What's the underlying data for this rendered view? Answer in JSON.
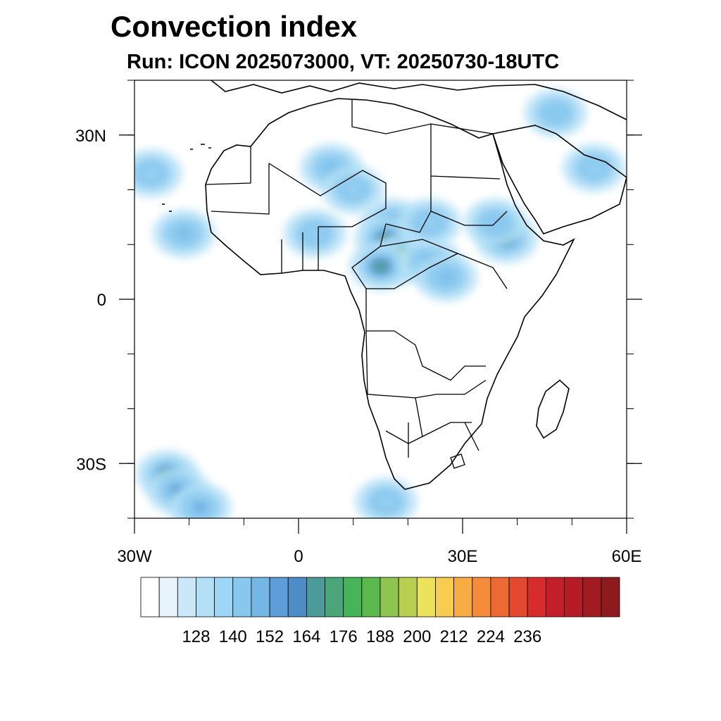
{
  "title": "Convection index",
  "subtitle": "Run: ICON 2025073000,  VT: 20250730-18UTC",
  "map": {
    "projection": "cylindrical equidistant",
    "lon_range": [
      -30,
      60
    ],
    "lat_range": [
      -40,
      40
    ],
    "x_ticks": [
      {
        "value": -30,
        "label": "30W"
      },
      {
        "value": 0,
        "label": "0"
      },
      {
        "value": 30,
        "label": "30E"
      },
      {
        "value": 60,
        "label": "60E"
      }
    ],
    "y_ticks": [
      {
        "value": 30,
        "label": "30N"
      },
      {
        "value": 0,
        "label": "0"
      },
      {
        "value": -30,
        "label": "30S"
      }
    ],
    "minor_x_step": 10,
    "minor_y_step": 10,
    "colors": {
      "background": "#ffffff",
      "coastline": "#000000",
      "frame": "#000000"
    }
  },
  "colorbar": {
    "colors": [
      "#ffffff",
      "#e8f4fc",
      "#cce8f8",
      "#b4e0f7",
      "#9ed6f5",
      "#88c8ee",
      "#74b6e4",
      "#5e9ed8",
      "#4f8cc6",
      "#4c9a9a",
      "#4aa67a",
      "#48b45a",
      "#5ab84c",
      "#8ec450",
      "#b8d050",
      "#ece25c",
      "#f8cc50",
      "#f8ac44",
      "#f48c3c",
      "#ee6a34",
      "#e4482e",
      "#d82c2c",
      "#c41e2a",
      "#b41c26",
      "#a01c22",
      "#8c1a1e"
    ],
    "labels": [
      "128",
      "140",
      "152",
      "164",
      "176",
      "188",
      "200",
      "212",
      "224",
      "236"
    ]
  },
  "convection_cells": [
    {
      "lon": 6,
      "lat": 24,
      "level": 6
    },
    {
      "lon": 10,
      "lat": 20,
      "level": 4
    },
    {
      "lon": 17,
      "lat": 14,
      "level": 8
    },
    {
      "lon": 16,
      "lat": 11,
      "level": 10
    },
    {
      "lon": 19,
      "lat": 7.5,
      "level": 13
    },
    {
      "lon": 15,
      "lat": 6,
      "level": 10
    },
    {
      "lon": 24,
      "lat": 7,
      "level": 7
    },
    {
      "lon": 27,
      "lat": 4,
      "level": 6
    },
    {
      "lon": 24,
      "lat": 14,
      "level": 4
    },
    {
      "lon": 38,
      "lat": 11,
      "level": 9
    },
    {
      "lon": 36,
      "lat": 14,
      "level": 5
    },
    {
      "lon": 47,
      "lat": 34,
      "level": 5
    },
    {
      "lon": 54,
      "lat": 24,
      "level": 4
    },
    {
      "lon": -21,
      "lat": 12,
      "level": 6
    },
    {
      "lon": -27,
      "lat": 23,
      "level": 4
    },
    {
      "lon": 3,
      "lat": 12,
      "level": 4
    },
    {
      "lon": -24,
      "lat": -32,
      "level": 10
    },
    {
      "lon": -22,
      "lat": -35,
      "level": 8
    },
    {
      "lon": -18,
      "lat": -38,
      "level": 7
    },
    {
      "lon": 16,
      "lat": -37,
      "level": 4
    }
  ]
}
